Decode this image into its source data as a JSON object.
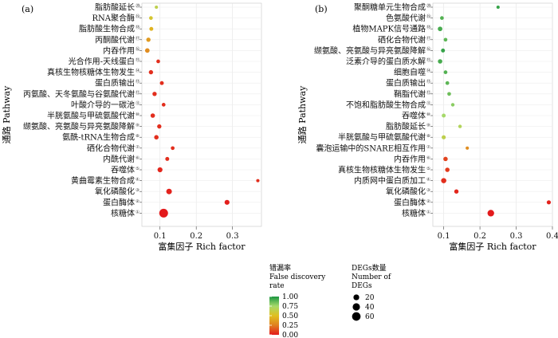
{
  "chart_data": [
    {
      "type": "scatter",
      "panel_label": "(a)",
      "xlabel": "富集因子 Rich factor",
      "ylabel": "通路 Pathway",
      "xlim": [
        0.05,
        0.38
      ],
      "xticks": [
        0.1,
        0.2,
        0.3
      ],
      "xtick_labels": [
        "0.1",
        "0.2",
        "0.3"
      ],
      "grid": true,
      "points": [
        {
          "pathway": "脂肪酸延长",
          "sup": "⑳",
          "x": 0.09,
          "degs": 2,
          "fdr": 0.65
        },
        {
          "pathway": "RNA聚合酶",
          "sup": "⑲",
          "x": 0.075,
          "degs": 4,
          "fdr": 0.55
        },
        {
          "pathway": "脂肪酸生物合成",
          "sup": "⑱",
          "x": 0.076,
          "degs": 5,
          "fdr": 0.45
        },
        {
          "pathway": "丙酮酸代谢",
          "sup": "⑰",
          "x": 0.068,
          "degs": 7,
          "fdr": 0.35
        },
        {
          "pathway": "内吞作用",
          "sup": "⑯",
          "x": 0.065,
          "degs": 9,
          "fdr": 0.3
        },
        {
          "pathway": "光合作用-天线蛋白",
          "sup": "⑮",
          "x": 0.095,
          "degs": 4,
          "fdr": 0.05
        },
        {
          "pathway": "真核生物核糖体生物发生",
          "sup": "⑭",
          "x": 0.075,
          "degs": 7,
          "fdr": 0.05
        },
        {
          "pathway": "蛋白质输出",
          "sup": "⑬",
          "x": 0.105,
          "degs": 5,
          "fdr": 0.05
        },
        {
          "pathway": "丙氨酸、天冬氨酸与谷氨酸代谢",
          "sup": "⑫",
          "x": 0.085,
          "degs": 7,
          "fdr": 0.05
        },
        {
          "pathway": "叶酸介导的一碳池",
          "sup": "⑪",
          "x": 0.11,
          "degs": 4,
          "fdr": 0.05
        },
        {
          "pathway": "半胱氨酸与甲硫氨酸代谢",
          "sup": "⑩",
          "x": 0.08,
          "degs": 8,
          "fdr": 0.05
        },
        {
          "pathway": "缬氨酸、亮氨酸与异亮氨酸降解",
          "sup": "⑨",
          "x": 0.098,
          "degs": 7,
          "fdr": 0.05
        },
        {
          "pathway": "氨酰-tRNA生物合成",
          "sup": "⑧",
          "x": 0.09,
          "degs": 8,
          "fdr": 0.05
        },
        {
          "pathway": "硒化合物代谢",
          "sup": "⑦",
          "x": 0.135,
          "degs": 4,
          "fdr": 0.05
        },
        {
          "pathway": "内酰代谢",
          "sup": "⑥",
          "x": 0.12,
          "degs": 5,
          "fdr": 0.05
        },
        {
          "pathway": "吞噬体",
          "sup": "⑤",
          "x": 0.1,
          "degs": 12,
          "fdr": 0.03
        },
        {
          "pathway": "黄曲霉素生物合成",
          "sup": "④",
          "x": 0.37,
          "degs": 2,
          "fdr": 0.05
        },
        {
          "pathway": "氧化磷酸化",
          "sup": "③",
          "x": 0.125,
          "degs": 18,
          "fdr": 0.02
        },
        {
          "pathway": "蛋白酶体",
          "sup": "②",
          "x": 0.285,
          "degs": 12,
          "fdr": 0.01
        },
        {
          "pathway": "核糖体",
          "sup": "①",
          "x": 0.11,
          "degs": 65,
          "fdr": 0.0
        }
      ]
    },
    {
      "type": "scatter",
      "panel_label": "(b)",
      "xlabel": "富集因子 Rich factor",
      "ylabel": "通路 Pathway",
      "xlim": [
        0.07,
        0.4
      ],
      "xticks": [
        0.1,
        0.2,
        0.3,
        0.4
      ],
      "xtick_labels": [
        "0.1",
        "0.2",
        "0.3",
        "0.4"
      ],
      "grid": true,
      "points": [
        {
          "pathway": "聚酮糖单元生物合成",
          "sup": "⑳",
          "x": 0.25,
          "degs": 2,
          "fdr": 0.95
        },
        {
          "pathway": "色氨酸代谢",
          "sup": "⑲",
          "x": 0.095,
          "degs": 4,
          "fdr": 0.9
        },
        {
          "pathway": "植物MAPK信号通路",
          "sup": "⑱",
          "x": 0.09,
          "degs": 9,
          "fdr": 0.92
        },
        {
          "pathway": "硒化合物代谢",
          "sup": "⑰",
          "x": 0.105,
          "degs": 4,
          "fdr": 0.88
        },
        {
          "pathway": "缬氨酸、亮氨酸与异亮氨酸降解",
          "sup": "⑯",
          "x": 0.098,
          "degs": 5,
          "fdr": 0.95
        },
        {
          "pathway": "泛素介导的蛋白质水解",
          "sup": "⑮",
          "x": 0.09,
          "degs": 8,
          "fdr": 0.92
        },
        {
          "pathway": "细胞自噬",
          "sup": "⑭",
          "x": 0.105,
          "degs": 4,
          "fdr": 0.9
        },
        {
          "pathway": "蛋白质输出",
          "sup": "⑬",
          "x": 0.11,
          "degs": 4,
          "fdr": 0.88
        },
        {
          "pathway": "鞘脂代谢",
          "sup": "⑫",
          "x": 0.115,
          "degs": 4,
          "fdr": 0.85
        },
        {
          "pathway": "不饱和脂肪酸生物合成",
          "sup": "⑪",
          "x": 0.125,
          "degs": 3,
          "fdr": 0.8
        },
        {
          "pathway": "吞噬体",
          "sup": "⑩",
          "x": 0.1,
          "degs": 5,
          "fdr": 0.75
        },
        {
          "pathway": "脂肪酸延长",
          "sup": "⑨",
          "x": 0.145,
          "degs": 3,
          "fdr": 0.7
        },
        {
          "pathway": "半胱氨酸与甲硫氨酸代谢",
          "sup": "⑧",
          "x": 0.1,
          "degs": 6,
          "fdr": 0.65
        },
        {
          "pathway": "囊泡运输中的SNARE相互作用",
          "sup": "⑦",
          "x": 0.165,
          "degs": 2,
          "fdr": 0.3
        },
        {
          "pathway": "内吞作用",
          "sup": "⑥",
          "x": 0.105,
          "degs": 8,
          "fdr": 0.1
        },
        {
          "pathway": "真核生物核糖体生物发生",
          "sup": "⑤",
          "x": 0.11,
          "degs": 8,
          "fdr": 0.08
        },
        {
          "pathway": "内质网中蛋白质加工",
          "sup": "④",
          "x": 0.1,
          "degs": 14,
          "fdr": 0.05
        },
        {
          "pathway": "氧化磷酸化",
          "sup": "③",
          "x": 0.135,
          "degs": 7,
          "fdr": 0.03
        },
        {
          "pathway": "蛋白酶体",
          "sup": "②",
          "x": 0.39,
          "degs": 6,
          "fdr": 0.02
        },
        {
          "pathway": "核糖体",
          "sup": "①",
          "x": 0.23,
          "degs": 30,
          "fdr": 0.0
        }
      ]
    }
  ],
  "legend": {
    "color": {
      "title_zh": "错漏率",
      "title_en_1": "False discovery",
      "title_en_2": "rate",
      "ticks": [
        "1.00",
        "0.75",
        "0.50",
        "0.25",
        "0.00"
      ],
      "colors": [
        "#1a9641",
        "#a6d96a",
        "#e0c020",
        "#e08020",
        "#e31a1c"
      ]
    },
    "size": {
      "title_zh": "DEGs数量",
      "title_en_1": "Number of",
      "title_en_2": "DEGs",
      "values": [
        "20",
        "40",
        "60"
      ]
    }
  }
}
